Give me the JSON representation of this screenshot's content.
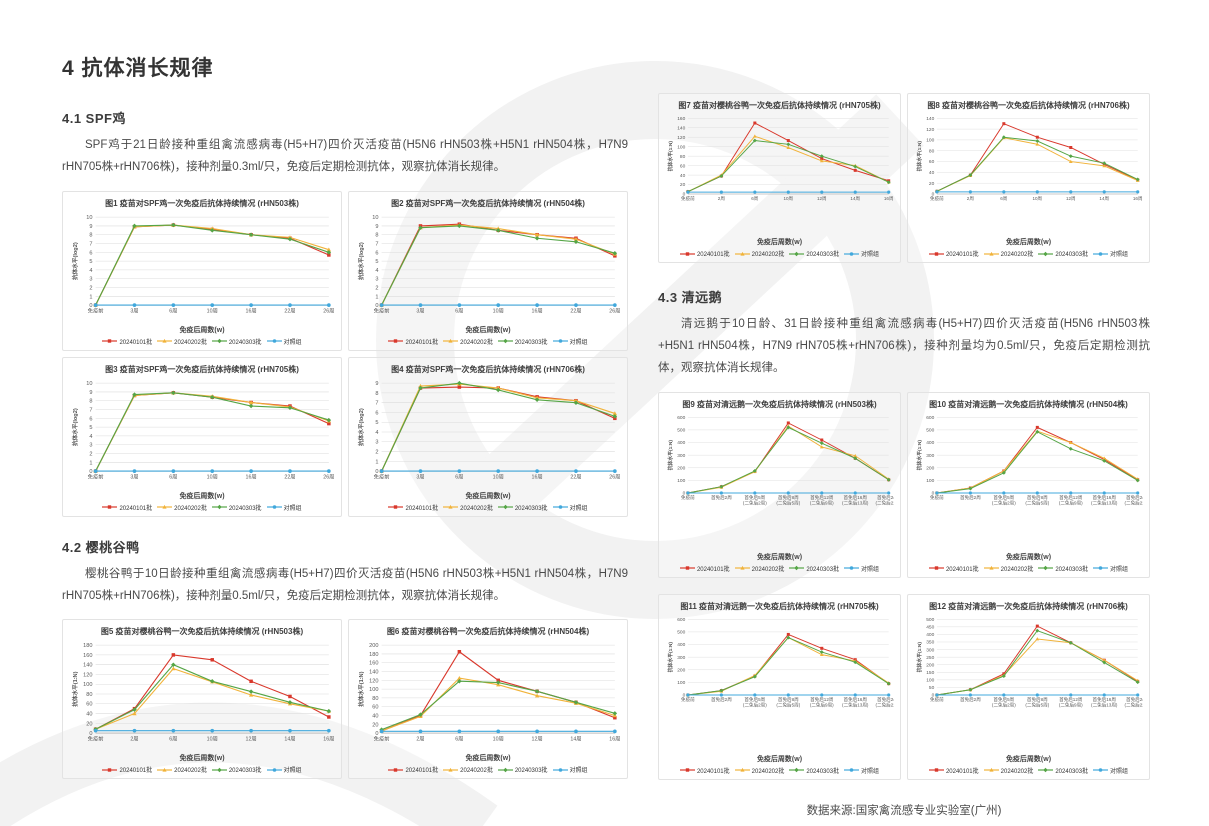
{
  "page": {
    "title": "4 抗体消长规律",
    "footer": "数据来源:国家禽流感专业实验室(广州)"
  },
  "sections": {
    "spf": {
      "heading": "4.1 SPF鸡",
      "body": "SPF鸡于21日龄接种重组禽流感病毒(H5+H7)四价灭活疫苗(H5N6 rHN503株+H5N1 rHN504株，H7N9 rHN705株+rHN706株)，接种剂量0.3ml/只，免疫后定期检测抗体，观察抗体消长规律。"
    },
    "duck": {
      "heading": "4.2 樱桃谷鸭",
      "body": "樱桃谷鸭于10日龄接种重组禽流感病毒(H5+H7)四价灭活疫苗(H5N6 rHN503株+H5N1 rHN504株，H7N9 rHN705株+rHN706株)，接种剂量0.5ml/只，免疫后定期检测抗体，观察抗体消长规律。"
    },
    "goose": {
      "heading": "4.3 清远鹅",
      "body": "清远鹅于10日龄、31日龄接种重组禽流感病毒(H5+H7)四价灭活疫苗(H5N6 rHN503株+H5N1 rHN504株，H7N9 rHN705株+rHN706株)，接种剂量均为0.5ml/只，免疫后定期检测抗体，观察抗体消长规律。"
    }
  },
  "colors": {
    "batch1_red": "#D9382C",
    "batch2_yellow": "#F1B33A",
    "batch3_green": "#55A546",
    "control_blue": "#41A8DC",
    "gridline": "#dcdcdc",
    "axis": "#bfbfbf"
  },
  "chart_data": [
    {
      "id": "fig1",
      "type": "line",
      "title": "图1 疫苗对SPF鸡一次免疫后抗体持续情况 (rHN503株)",
      "xlabel": "免疫后周数(w)",
      "ylabel": "抗体水平(log2)",
      "ymax": 10,
      "ystep": 1,
      "ylim": [
        0,
        10
      ],
      "grid": true,
      "legend_position": "bottom",
      "categories": [
        "免疫前",
        "3周",
        "6周",
        "10周",
        "16周",
        "22周",
        "26周"
      ],
      "series": [
        {
          "name": "20240101批",
          "color": "#D9382C",
          "marker": "square",
          "values": [
            0,
            8.9,
            9.1,
            8.6,
            8.0,
            7.6,
            5.7
          ]
        },
        {
          "name": "20240202批",
          "color": "#F1B33A",
          "marker": "triangle",
          "values": [
            0,
            8.9,
            9.1,
            8.7,
            8.0,
            7.7,
            6.3
          ]
        },
        {
          "name": "20240303批",
          "color": "#55A546",
          "marker": "diamond",
          "values": [
            0,
            9.0,
            9.1,
            8.5,
            8.0,
            7.5,
            6.0
          ]
        },
        {
          "name": "对照组",
          "color": "#41A8DC",
          "marker": "circle",
          "values": [
            0,
            0,
            0,
            0,
            0,
            0,
            0
          ]
        }
      ]
    },
    {
      "id": "fig2",
      "type": "line",
      "title": "图2 疫苗对SPF鸡一次免疫后抗体持续情况 (rHN504株)",
      "xlabel": "免疫后周数(w)",
      "ylabel": "抗体水平(log2)",
      "ymax": 10,
      "ystep": 1,
      "ylim": [
        0,
        10
      ],
      "grid": true,
      "legend_position": "bottom",
      "categories": [
        "免疫前",
        "3周",
        "6周",
        "10周",
        "16周",
        "22周",
        "26周"
      ],
      "series": [
        {
          "name": "20240101批",
          "color": "#D9382C",
          "marker": "square",
          "values": [
            0,
            9.0,
            9.2,
            8.5,
            8.0,
            7.6,
            5.6
          ]
        },
        {
          "name": "20240202批",
          "color": "#F1B33A",
          "marker": "triangle",
          "values": [
            0,
            8.8,
            9.1,
            8.7,
            8.0,
            7.5,
            5.8
          ]
        },
        {
          "name": "20240303批",
          "color": "#55A546",
          "marker": "diamond",
          "values": [
            0,
            8.8,
            9.0,
            8.5,
            7.6,
            7.2,
            5.9
          ]
        },
        {
          "name": "对照组",
          "color": "#41A8DC",
          "marker": "circle",
          "values": [
            0,
            0,
            0,
            0,
            0,
            0,
            0
          ]
        }
      ]
    },
    {
      "id": "fig3",
      "type": "line",
      "title": "图3 疫苗对SPF鸡一次免疫后抗体持续情况 (rHN705株)",
      "xlabel": "免疫后周数(w)",
      "ylabel": "抗体水平(log2)",
      "ymax": 10,
      "ystep": 1,
      "ylim": [
        0,
        10
      ],
      "grid": true,
      "legend_position": "bottom",
      "categories": [
        "免疫前",
        "3周",
        "6周",
        "10周",
        "16周",
        "22周",
        "26周"
      ],
      "series": [
        {
          "name": "20240101批",
          "color": "#D9382C",
          "marker": "square",
          "values": [
            0,
            8.6,
            8.9,
            8.4,
            7.8,
            7.4,
            5.4
          ]
        },
        {
          "name": "20240202批",
          "color": "#F1B33A",
          "marker": "triangle",
          "values": [
            0,
            8.6,
            8.9,
            8.5,
            7.8,
            7.3,
            5.7
          ]
        },
        {
          "name": "20240303批",
          "color": "#55A546",
          "marker": "diamond",
          "values": [
            0,
            8.7,
            8.9,
            8.4,
            7.4,
            7.2,
            5.8
          ]
        },
        {
          "name": "对照组",
          "color": "#41A8DC",
          "marker": "circle",
          "values": [
            0,
            0,
            0,
            0,
            0,
            0,
            0
          ]
        }
      ]
    },
    {
      "id": "fig4",
      "type": "line",
      "title": "图4 疫苗对SPF鸡一次免疫后抗体持续情况 (rHN706株)",
      "xlabel": "免疫后周数(w)",
      "ylabel": "抗体水平(log2)",
      "ymax": 9,
      "ystep": 1,
      "ylim": [
        0,
        9
      ],
      "grid": true,
      "legend_position": "bottom",
      "categories": [
        "免疫前",
        "3周",
        "6周",
        "10周",
        "16周",
        "22周",
        "26周"
      ],
      "series": [
        {
          "name": "20240101批",
          "color": "#D9382C",
          "marker": "square",
          "values": [
            0,
            8.5,
            8.6,
            8.5,
            7.6,
            7.2,
            5.4
          ]
        },
        {
          "name": "20240202批",
          "color": "#F1B33A",
          "marker": "triangle",
          "values": [
            0,
            8.7,
            8.9,
            8.5,
            7.5,
            7.2,
            5.9
          ]
        },
        {
          "name": "20240303批",
          "color": "#55A546",
          "marker": "diamond",
          "values": [
            0,
            8.5,
            9.0,
            8.3,
            7.3,
            7.0,
            5.6
          ]
        },
        {
          "name": "对照组",
          "color": "#41A8DC",
          "marker": "circle",
          "values": [
            0,
            0,
            0,
            0,
            0,
            0,
            0
          ]
        }
      ]
    },
    {
      "id": "fig5",
      "type": "line",
      "title": "图5 疫苗对樱桃谷鸭一次免疫后抗体持续情况 (rHN503株)",
      "xlabel": "免疫后周数(w)",
      "ylabel": "抗体水平(1:N)",
      "ymax": 180,
      "ystep": 20,
      "ylim": [
        0,
        180
      ],
      "grid": true,
      "legend_position": "bottom",
      "categories": [
        "免疫前",
        "2周",
        "6周",
        "10周",
        "12周",
        "14周",
        "16周"
      ],
      "series": [
        {
          "name": "20240101批",
          "color": "#D9382C",
          "marker": "square",
          "values": [
            8,
            50,
            160,
            150,
            106,
            75,
            33
          ]
        },
        {
          "name": "20240202批",
          "color": "#F1B33A",
          "marker": "triangle",
          "values": [
            8,
            40,
            132,
            105,
            78,
            60,
            45
          ]
        },
        {
          "name": "20240303批",
          "color": "#55A546",
          "marker": "diamond",
          "values": [
            8,
            48,
            140,
            106,
            85,
            63,
            45
          ]
        },
        {
          "name": "对照组",
          "color": "#41A8DC",
          "marker": "circle",
          "values": [
            5,
            5,
            5,
            5,
            5,
            5,
            5
          ]
        }
      ]
    },
    {
      "id": "fig6",
      "type": "line",
      "title": "图6 疫苗对樱桃谷鸭一次免疫后抗体持续情况 (rHN504株)",
      "xlabel": "免疫后周数(w)",
      "ylabel": "抗体水平(1:N)",
      "ymax": 200,
      "ystep": 20,
      "ylim": [
        0,
        200
      ],
      "grid": true,
      "legend_position": "bottom",
      "categories": [
        "免疫前",
        "2周",
        "6周",
        "10周",
        "12周",
        "14周",
        "16周"
      ],
      "series": [
        {
          "name": "20240101批",
          "color": "#D9382C",
          "marker": "square",
          "values": [
            5,
            40,
            185,
            120,
            95,
            70,
            35
          ]
        },
        {
          "name": "20240202批",
          "color": "#F1B33A",
          "marker": "triangle",
          "values": [
            5,
            38,
            125,
            110,
            85,
            68,
            40
          ]
        },
        {
          "name": "20240303批",
          "color": "#55A546",
          "marker": "diamond",
          "values": [
            8,
            42,
            118,
            115,
            95,
            70,
            45
          ]
        },
        {
          "name": "对照组",
          "color": "#41A8DC",
          "marker": "circle",
          "values": [
            4,
            4,
            4,
            4,
            4,
            4,
            4
          ]
        }
      ]
    },
    {
      "id": "fig7",
      "type": "line",
      "title": "图7 疫苗对樱桃谷鸭一次免疫后抗体持续情况 (rHN705株)",
      "xlabel": "免疫后周数(w)",
      "ylabel": "抗体水平(1:N)",
      "ymax": 160,
      "ystep": 20,
      "ylim": [
        0,
        160
      ],
      "grid": true,
      "legend_position": "bottom",
      "categories": [
        "免疫前",
        "2周",
        "6周",
        "10周",
        "12周",
        "14周",
        "16周"
      ],
      "series": [
        {
          "name": "20240101批",
          "color": "#D9382C",
          "marker": "square",
          "values": [
            5,
            38,
            150,
            113,
            75,
            50,
            28
          ]
        },
        {
          "name": "20240202批",
          "color": "#F1B33A",
          "marker": "triangle",
          "values": [
            5,
            40,
            122,
            98,
            70,
            60,
            25
          ]
        },
        {
          "name": "20240303批",
          "color": "#55A546",
          "marker": "diamond",
          "values": [
            5,
            38,
            113,
            105,
            80,
            58,
            25
          ]
        },
        {
          "name": "对照组",
          "color": "#41A8DC",
          "marker": "circle",
          "values": [
            4,
            4,
            4,
            4,
            4,
            4,
            4
          ]
        }
      ]
    },
    {
      "id": "fig8",
      "type": "line",
      "title": "图8 疫苗对樱桃谷鸭一次免疫后抗体持续情况 (rHN706株)",
      "xlabel": "免疫后周数(w)",
      "ylabel": "抗体水平(1:N)",
      "ymax": 140,
      "ystep": 20,
      "ylim": [
        0,
        140
      ],
      "grid": true,
      "legend_position": "bottom",
      "categories": [
        "免疫前",
        "2周",
        "6周",
        "10周",
        "12周",
        "14周",
        "16周"
      ],
      "series": [
        {
          "name": "20240101批",
          "color": "#D9382C",
          "marker": "square",
          "values": [
            5,
            35,
            130,
            105,
            86,
            55,
            26
          ]
        },
        {
          "name": "20240202批",
          "color": "#F1B33A",
          "marker": "triangle",
          "values": [
            5,
            34,
            104,
            92,
            60,
            52,
            25
          ]
        },
        {
          "name": "20240303批",
          "color": "#55A546",
          "marker": "diamond",
          "values": [
            5,
            35,
            105,
            98,
            70,
            57,
            27
          ]
        },
        {
          "name": "对照组",
          "color": "#41A8DC",
          "marker": "circle",
          "values": [
            4,
            4,
            4,
            4,
            4,
            4,
            4
          ]
        }
      ]
    },
    {
      "id": "fig9",
      "type": "line",
      "title": "图9 疫苗对清远鹅一次免疫后抗体持续情况 (rHN503株)",
      "xlabel": "免疫后周数(w)",
      "ylabel": "抗体水平(1:N)",
      "ymax": 600,
      "ystep": 100,
      "ylim": [
        0,
        600
      ],
      "grid": true,
      "legend_position": "bottom",
      "categories": [
        "免疫前",
        "首免后2周",
        "首免后5周\n(二免后2周)",
        "首免后8周\n(二免后5周)",
        "首免后12周\n(二免后9周)",
        "首免后16周\n(二免后13周)",
        "首免后24周\n(二免后21周)"
      ],
      "series": [
        {
          "name": "20240101批",
          "color": "#D9382C",
          "marker": "square",
          "values": [
            0,
            50,
            170,
            555,
            420,
            275,
            105
          ]
        },
        {
          "name": "20240202批",
          "color": "#F1B33A",
          "marker": "triangle",
          "values": [
            0,
            45,
            170,
            530,
            365,
            295,
            110
          ]
        },
        {
          "name": "20240303批",
          "color": "#55A546",
          "marker": "diamond",
          "values": [
            0,
            50,
            175,
            520,
            395,
            275,
            105
          ]
        },
        {
          "name": "对照组",
          "color": "#41A8DC",
          "marker": "circle",
          "values": [
            0,
            0,
            0,
            0,
            0,
            0,
            0
          ]
        }
      ]
    },
    {
      "id": "fig10",
      "type": "line",
      "title": "图10 疫苗对清远鹅一次免疫后抗体持续情况 (rHN504株)",
      "xlabel": "免疫后周数(w)",
      "ylabel": "抗体水平(1:N)",
      "ymax": 600,
      "ystep": 100,
      "ylim": [
        0,
        600
      ],
      "grid": true,
      "legend_position": "bottom",
      "categories": [
        "免疫前",
        "首免后2周",
        "首免后5周\n(二免后2周)",
        "首免后8周\n(二免后5周)",
        "首免后12周\n(二免后9周)",
        "首免后16周\n(二免后13周)",
        "首免后24周\n(二免后21周)"
      ],
      "series": [
        {
          "name": "20240101批",
          "color": "#D9382C",
          "marker": "square",
          "values": [
            0,
            40,
            175,
            520,
            400,
            265,
            105
          ]
        },
        {
          "name": "20240202批",
          "color": "#F1B33A",
          "marker": "triangle",
          "values": [
            0,
            40,
            175,
            490,
            400,
            275,
            110
          ]
        },
        {
          "name": "20240303批",
          "color": "#55A546",
          "marker": "diamond",
          "values": [
            0,
            35,
            160,
            485,
            350,
            255,
            100
          ]
        },
        {
          "name": "对照组",
          "color": "#41A8DC",
          "marker": "circle",
          "values": [
            0,
            0,
            0,
            0,
            0,
            0,
            0
          ]
        }
      ]
    },
    {
      "id": "fig11",
      "type": "line",
      "title": "图11 疫苗对清远鹅一次免疫后抗体持续情况 (rHN705株)",
      "xlabel": "免疫后周数(w)",
      "ylabel": "抗体水平(1:N)",
      "ymax": 600,
      "ystep": 100,
      "ylim": [
        0,
        600
      ],
      "grid": true,
      "legend_position": "bottom",
      "categories": [
        "免疫前",
        "首免后2周",
        "首免后5周\n(二免后2周)",
        "首免后8周\n(二免后5周)",
        "首免后12周\n(二免后9周)",
        "首免后16周\n(二免后13周)",
        "首免后24周\n(二免后21周)"
      ],
      "series": [
        {
          "name": "20240101批",
          "color": "#D9382C",
          "marker": "square",
          "values": [
            0,
            35,
            150,
            480,
            370,
            280,
            90
          ]
        },
        {
          "name": "20240202批",
          "color": "#F1B33A",
          "marker": "triangle",
          "values": [
            0,
            30,
            155,
            455,
            320,
            270,
            95
          ]
        },
        {
          "name": "20240303批",
          "color": "#55A546",
          "marker": "diamond",
          "values": [
            0,
            35,
            145,
            455,
            340,
            260,
            90
          ]
        },
        {
          "name": "对照组",
          "color": "#41A8DC",
          "marker": "circle",
          "values": [
            0,
            0,
            0,
            0,
            0,
            0,
            0
          ]
        }
      ]
    },
    {
      "id": "fig12",
      "type": "line",
      "title": "图12 疫苗对清远鹅一次免疫后抗体持续情况 (rHN706株)",
      "xlabel": "免疫后周数(w)",
      "ylabel": "抗体水平(1:N)",
      "ymax": 500,
      "ystep": 50,
      "ylim": [
        0,
        500
      ],
      "grid": true,
      "legend_position": "bottom",
      "categories": [
        "免疫前",
        "首免后2周",
        "首免后5周\n(二免后2周)",
        "首免后8周\n(二免后5周)",
        "首免后12周\n(二免后9周)",
        "首免后16周\n(二免后13周)",
        "首免后24周\n(二免后21周)"
      ],
      "series": [
        {
          "name": "20240101批",
          "color": "#D9382C",
          "marker": "square",
          "values": [
            0,
            35,
            140,
            455,
            345,
            230,
            90
          ]
        },
        {
          "name": "20240202批",
          "color": "#F1B33A",
          "marker": "triangle",
          "values": [
            0,
            35,
            130,
            370,
            345,
            230,
            95
          ]
        },
        {
          "name": "20240303批",
          "color": "#55A546",
          "marker": "diamond",
          "values": [
            0,
            35,
            125,
            425,
            345,
            215,
            85
          ]
        },
        {
          "name": "对照组",
          "color": "#41A8DC",
          "marker": "circle",
          "values": [
            0,
            0,
            0,
            0,
            0,
            0,
            0
          ]
        }
      ]
    }
  ]
}
